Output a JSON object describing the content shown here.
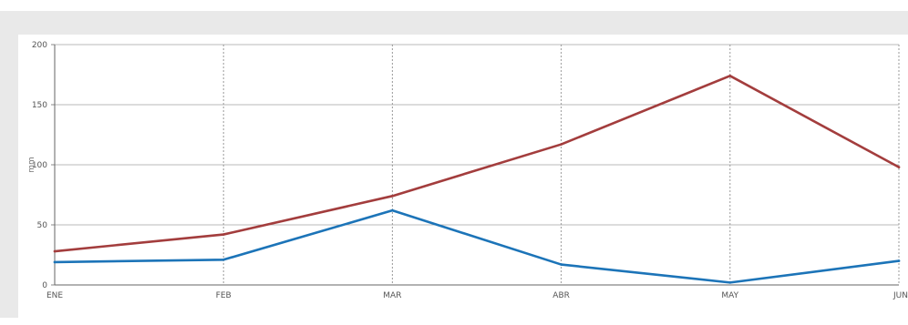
{
  "chart_data": {
    "type": "line",
    "title": "",
    "xlabel": "",
    "ylabel": "mm",
    "ylim": [
      0,
      200
    ],
    "yticks": [
      "0",
      "50",
      "100",
      "150",
      "200"
    ],
    "categories": [
      "ENE",
      "FEB",
      "MAR",
      "ABR",
      "MAY",
      "JUN"
    ],
    "grid": true,
    "series": [
      {
        "color": "#a33d3d",
        "values": [
          28,
          42,
          74,
          117,
          174,
          98
        ]
      },
      {
        "color": "#1c74b8",
        "values": [
          19,
          21,
          62,
          17,
          2,
          20
        ]
      }
    ]
  }
}
